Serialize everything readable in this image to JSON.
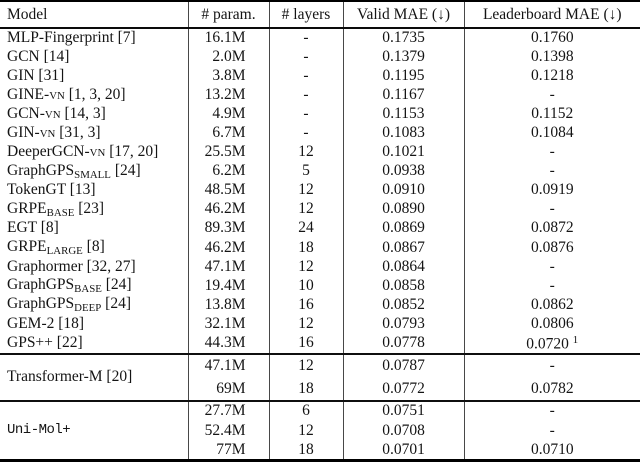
{
  "table": {
    "headers": {
      "model": "Model",
      "params": "# param.",
      "layers": "# layers",
      "valid_mae": "Valid MAE (↓)",
      "leaderboard_mae": "Leaderboard MAE (↓)"
    },
    "sections": [
      {
        "name": "baselines",
        "rows": [
          {
            "model": "MLP-Fingerprint [7]",
            "params": "16.1M",
            "layers": "-",
            "valid_mae": "0.1735",
            "leaderboard_mae": "0.1760"
          },
          {
            "model": "GCN [14]",
            "params": "2.0M",
            "layers": "-",
            "valid_mae": "0.1379",
            "leaderboard_mae": "0.1398"
          },
          {
            "model": "GIN [31]",
            "params": "3.8M",
            "layers": "-",
            "valid_mae": "0.1195",
            "leaderboard_mae": "0.1218"
          },
          {
            "model": [
              {
                "t": "GINE-"
              },
              {
                "t": "VN",
                "s": "sc"
              },
              {
                "t": " [1, 3, 20]"
              }
            ],
            "params": "13.2M",
            "layers": "-",
            "valid_mae": "0.1167",
            "leaderboard_mae": "-"
          },
          {
            "model": [
              {
                "t": "GCN-"
              },
              {
                "t": "VN",
                "s": "sc"
              },
              {
                "t": " [14, 3]"
              }
            ],
            "params": "4.9M",
            "layers": "-",
            "valid_mae": "0.1153",
            "leaderboard_mae": "0.1152"
          },
          {
            "model": [
              {
                "t": "GIN-"
              },
              {
                "t": "VN",
                "s": "sc"
              },
              {
                "t": " [31, 3]"
              }
            ],
            "params": "6.7M",
            "layers": "-",
            "valid_mae": "0.1083",
            "leaderboard_mae": "0.1084"
          },
          {
            "model": [
              {
                "t": "DeeperGCN-"
              },
              {
                "t": "VN",
                "s": "sc"
              },
              {
                "t": " [17, 20]"
              }
            ],
            "params": "25.5M",
            "layers": "12",
            "valid_mae": "0.1021",
            "leaderboard_mae": "-"
          },
          {
            "model": [
              {
                "t": "GraphGPS"
              },
              {
                "t": "SMALL",
                "s": "sub"
              },
              {
                "t": " [24]"
              }
            ],
            "params": "6.2M",
            "layers": "5",
            "valid_mae": "0.0938",
            "leaderboard_mae": "-"
          },
          {
            "model": "TokenGT [13]",
            "params": "48.5M",
            "layers": "12",
            "valid_mae": "0.0910",
            "leaderboard_mae": "0.0919"
          },
          {
            "model": [
              {
                "t": "GRPE"
              },
              {
                "t": "BASE",
                "s": "sub"
              },
              {
                "t": " [23]"
              }
            ],
            "params": "46.2M",
            "layers": "12",
            "valid_mae": "0.0890",
            "leaderboard_mae": "-"
          },
          {
            "model": "EGT [8]",
            "params": "89.3M",
            "layers": "24",
            "valid_mae": "0.0869",
            "leaderboard_mae": "0.0872"
          },
          {
            "model": [
              {
                "t": "GRPE"
              },
              {
                "t": "LARGE",
                "s": "sub"
              },
              {
                "t": " [8]"
              }
            ],
            "params": "46.2M",
            "layers": "18",
            "valid_mae": "0.0867",
            "leaderboard_mae": "0.0876"
          },
          {
            "model": "Graphormer [32, 27]",
            "params": "47.1M",
            "layers": "12",
            "valid_mae": "0.0864",
            "leaderboard_mae": "-"
          },
          {
            "model": [
              {
                "t": "GraphGPS"
              },
              {
                "t": "BASE",
                "s": "sub"
              },
              {
                "t": " [24]"
              }
            ],
            "params": "19.4M",
            "layers": "10",
            "valid_mae": "0.0858",
            "leaderboard_mae": "-"
          },
          {
            "model": [
              {
                "t": "GraphGPS"
              },
              {
                "t": "DEEP",
                "s": "sub"
              },
              {
                "t": " [24]"
              }
            ],
            "params": "13.8M",
            "layers": "16",
            "valid_mae": "0.0852",
            "leaderboard_mae": "0.0862"
          },
          {
            "model": "GEM-2 [18]",
            "params": "32.1M",
            "layers": "12",
            "valid_mae": "0.0793",
            "leaderboard_mae": "0.0806"
          },
          {
            "model": "GPS++ [22]",
            "params": "44.3M",
            "layers": "16",
            "valid_mae": "0.0778",
            "leaderboard_mae": [
              {
                "t": "0.0720 "
              },
              {
                "t": "1",
                "s": "sup"
              }
            ]
          }
        ]
      },
      {
        "name": "transformer-m",
        "group": "Transformer-M [20]",
        "group_mono": false,
        "rows": [
          {
            "params": "47.1M",
            "layers": "12",
            "valid_mae": "0.0787",
            "leaderboard_mae": "-"
          },
          {
            "params": "69M",
            "layers": "18",
            "valid_mae": "0.0772",
            "leaderboard_mae": "0.0782"
          }
        ]
      },
      {
        "name": "uni-mol-plus",
        "group": "Uni-Mol+",
        "group_mono": true,
        "rows": [
          {
            "params": "27.7M",
            "layers": "6",
            "valid_mae": "0.0751",
            "leaderboard_mae": "-"
          },
          {
            "params": "52.4M",
            "layers": "12",
            "valid_mae": "0.0708",
            "leaderboard_mae": "-"
          },
          {
            "params": "77M",
            "layers": "18",
            "valid_mae": "0.0701",
            "leaderboard_mae": "0.0710"
          }
        ]
      }
    ]
  }
}
